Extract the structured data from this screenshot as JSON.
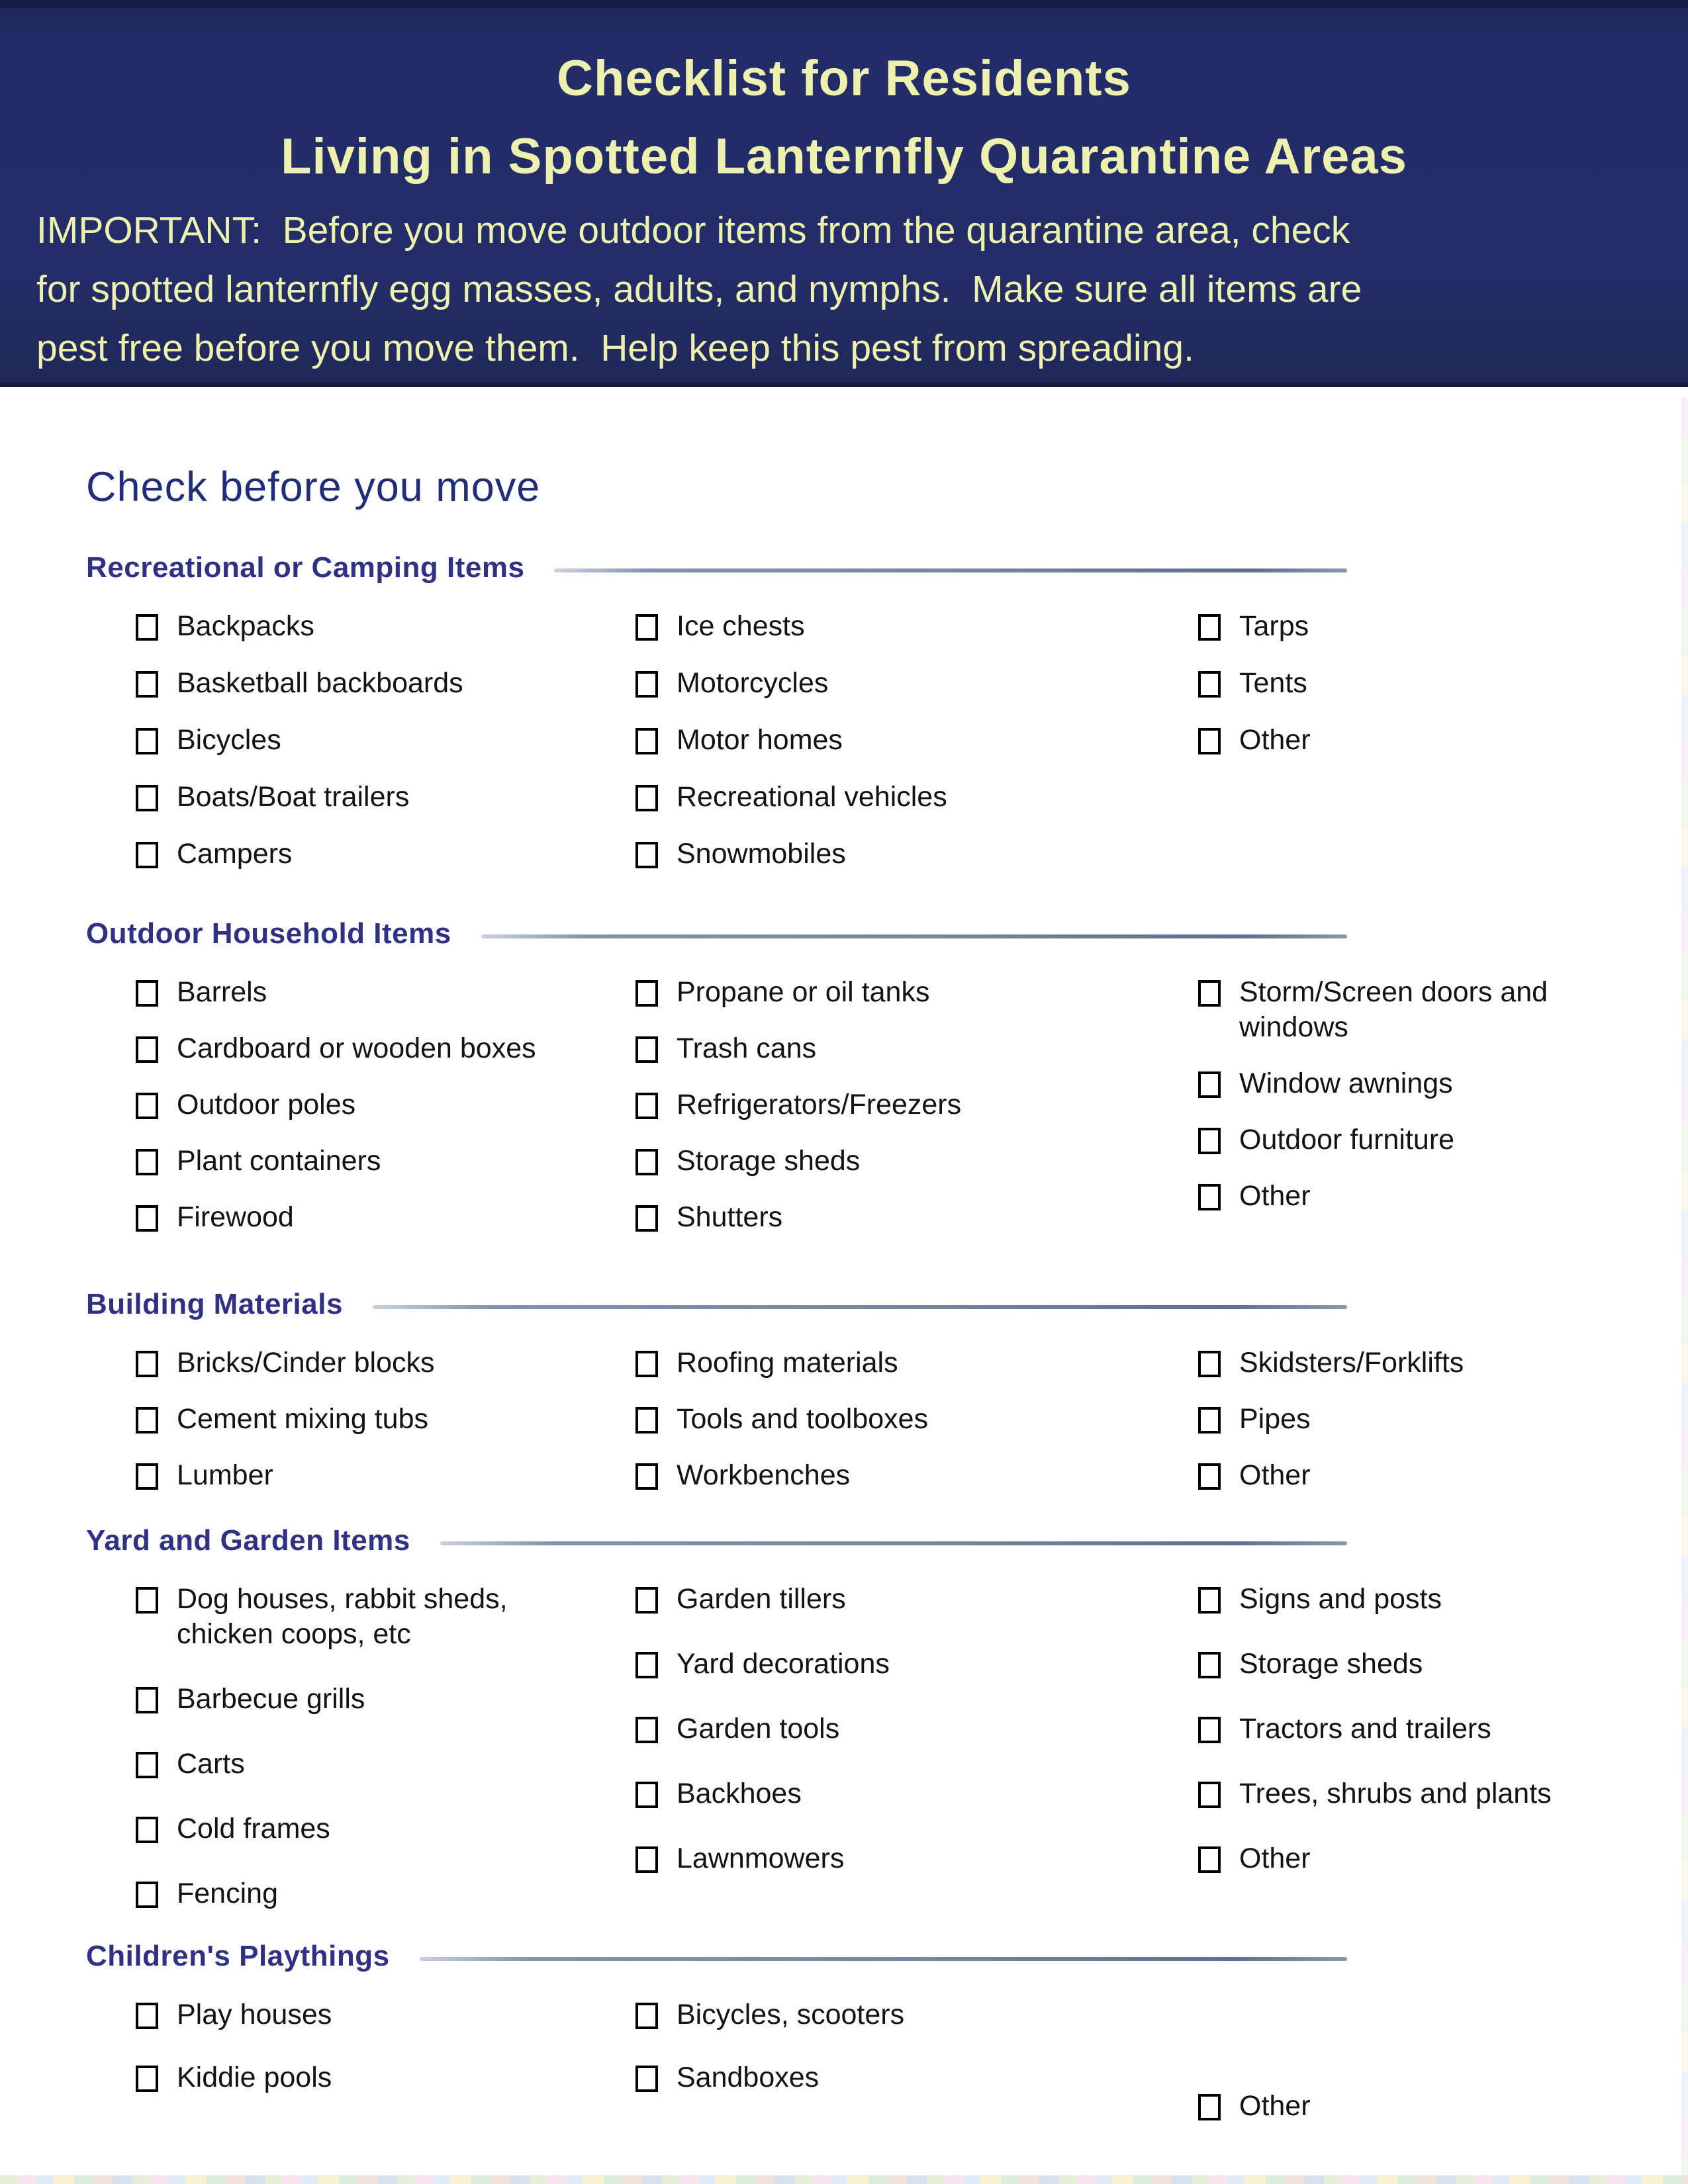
{
  "header": {
    "title_line1": "Checklist for Residents",
    "title_line2": "Living in Spotted Lanternfly Quarantine Areas",
    "important_text": "IMPORTANT:  Before you move outdoor items from the quarantine area, check\nfor spotted lanternfly egg masses, adults, and nymphs.  Make sure all items are\npest free before you move them.  Help keep this pest from spreading."
  },
  "main": {
    "heading": "Check before you move",
    "sections": [
      {
        "title": "Recreational or Camping Items",
        "columns": [
          [
            "Backpacks",
            "Basketball backboards",
            "Bicycles",
            "Boats/Boat trailers",
            "Campers"
          ],
          [
            "Ice chests",
            "Motorcycles",
            "Motor homes",
            "Recreational vehicles",
            "Snowmobiles"
          ],
          [
            "Tarps",
            "Tents",
            "Other"
          ]
        ]
      },
      {
        "title": "Outdoor Household Items",
        "columns": [
          [
            "Barrels",
            "Cardboard or wooden boxes",
            "Outdoor poles",
            "Plant containers",
            "Firewood"
          ],
          [
            "Propane or oil tanks",
            "Trash cans",
            "Refrigerators/Freezers",
            "Storage sheds",
            "Shutters"
          ],
          [
            "Storm/Screen doors and\nwindows",
            "Window awnings",
            "Outdoor furniture",
            "Other"
          ]
        ]
      },
      {
        "title": "Building Materials",
        "columns": [
          [
            "Bricks/Cinder blocks",
            "Cement mixing tubs",
            "Lumber"
          ],
          [
            "Roofing materials",
            "Tools and toolboxes",
            "Workbenches"
          ],
          [
            "Skidsters/Forklifts",
            "Pipes",
            "Other"
          ]
        ]
      },
      {
        "title": "Yard and Garden Items",
        "columns": [
          [
            "Dog houses, rabbit sheds,\nchicken coops, etc",
            "Barbecue grills",
            "Carts",
            "Cold frames",
            "Fencing"
          ],
          [
            "Garden tillers",
            "Yard decorations",
            "Garden tools",
            "Backhoes",
            "Lawnmowers"
          ],
          [
            "Signs and posts",
            "Storage sheds",
            "Tractors and trailers",
            "Trees, shrubs and plants",
            "Other"
          ]
        ]
      },
      {
        "title": "Children's Playthings",
        "columns": [
          [
            "Play houses",
            "Kiddie pools"
          ],
          [
            "Bicycles, scooters",
            "Sandboxes"
          ],
          [
            "Other"
          ]
        ]
      }
    ]
  },
  "colors": {
    "header_background": "#222c66",
    "header_text": "#eef0ad",
    "heading_navy": "#202d7a",
    "section_title_navy": "#2e3184",
    "rule_blue_gray": "#76859f",
    "item_text": "#131313",
    "checkbox_border": "#000000"
  }
}
